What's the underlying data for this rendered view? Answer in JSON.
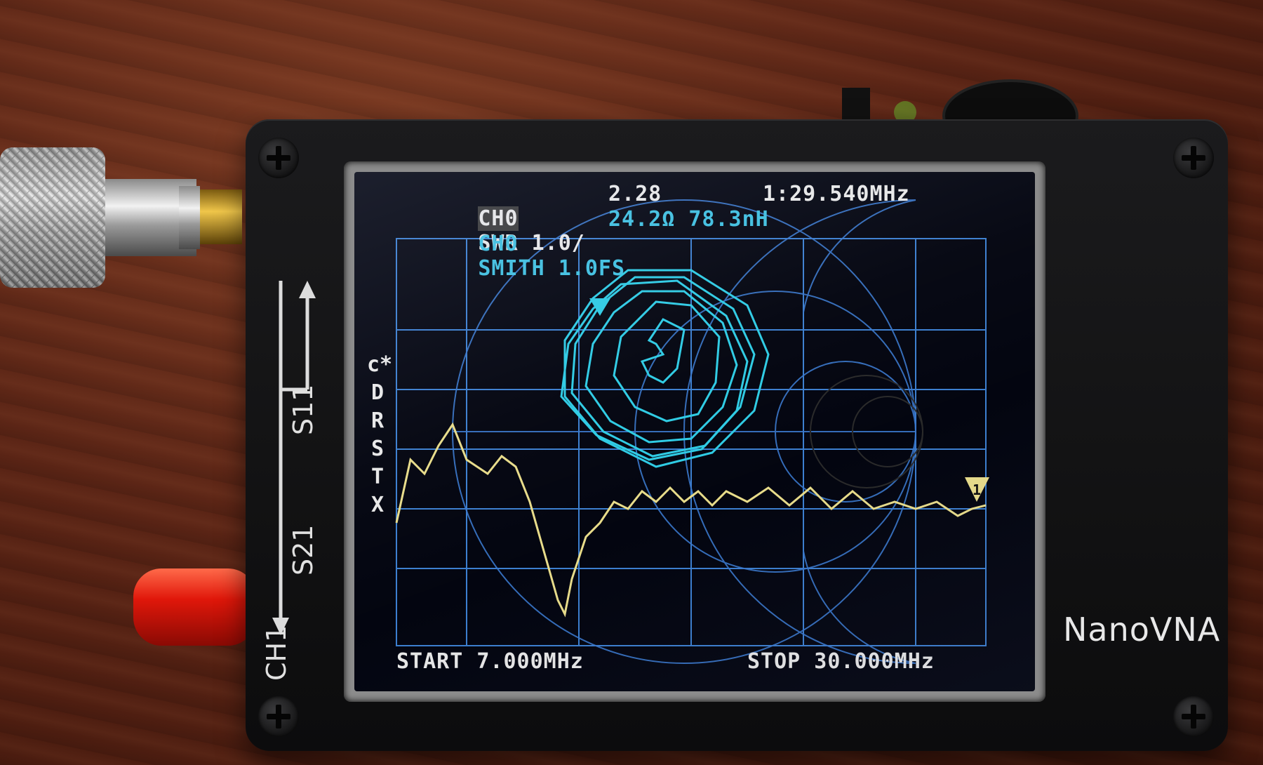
{
  "device": {
    "brand": "NanoVNA",
    "ports": {
      "s11": "S11",
      "s21": "S21",
      "ch1": "CH1"
    }
  },
  "screen": {
    "trace1": {
      "ch": "CH0",
      "format": "SWR 1.0/",
      "value": "2.28",
      "color": "#e8e8e8"
    },
    "marker_readout": "1:29.540MHz",
    "trace2": {
      "ch": "CH0",
      "format": "SMITH 1.0FS",
      "value": "24.2Ω 78.3nH",
      "color": "#3fc0e0"
    },
    "menu_letters": [
      "c*",
      "D",
      "R",
      "S",
      "T",
      "X"
    ],
    "start": "START 7.000MHz",
    "stop": "STOP 30.000MHz",
    "marker_label": "1",
    "colors": {
      "grid": "#3c7fd0",
      "swr_trace": "#e8dc8a",
      "smith_trace": "#2ecbe4",
      "text_blue": "#3fc0e0"
    }
  }
}
